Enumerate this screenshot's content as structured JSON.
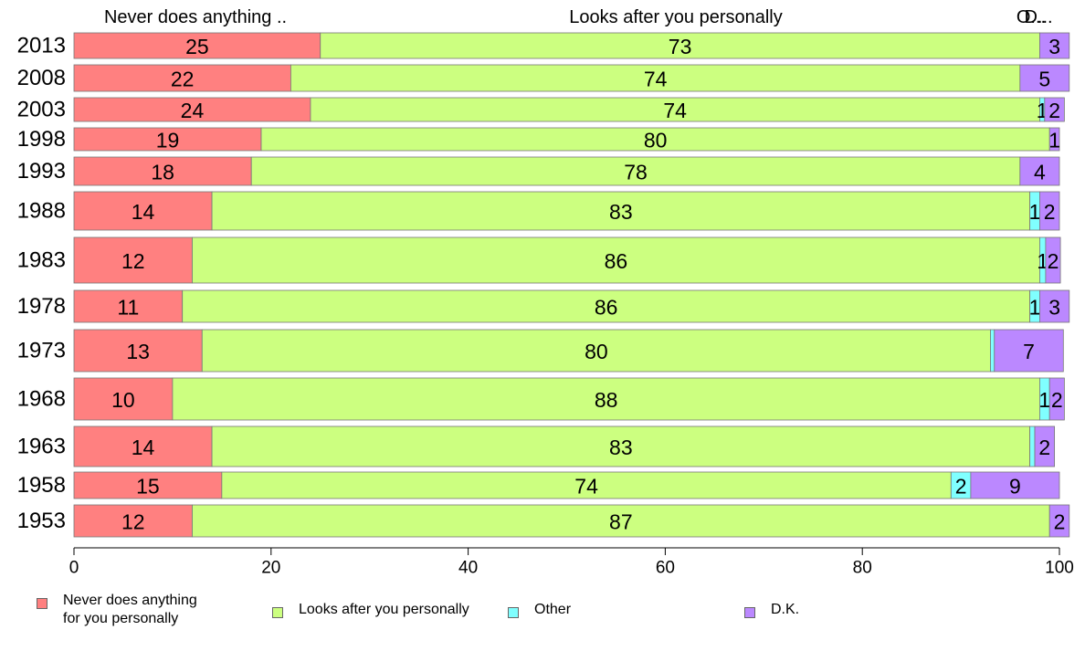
{
  "colors": {
    "never": "#ff8080",
    "looks_after": "#ccff80",
    "other": "#80ffff",
    "dk": "#bb88ff"
  },
  "top_labels": {
    "never": "Never does anything ..",
    "looks_after": "Looks after you personally",
    "other": "O...",
    "dk": "D..."
  },
  "legend": [
    {
      "key": "never",
      "label": "Never does anything\nfor you personally"
    },
    {
      "key": "looks_after",
      "label": "Looks after you personally"
    },
    {
      "key": "other",
      "label": "Other"
    },
    {
      "key": "dk",
      "label": "D.K."
    }
  ],
  "chart_data": {
    "type": "bar",
    "orientation": "horizontal",
    "stacked": true,
    "categories": [
      "2013",
      "2008",
      "2003",
      "1998",
      "1993",
      "1988",
      "1983",
      "1978",
      "1973",
      "1968",
      "1963",
      "1958",
      "1953"
    ],
    "series": [
      {
        "key": "never",
        "name": "Never does anything for you personally",
        "values": [
          25,
          22,
          24,
          19,
          18,
          14,
          12,
          11,
          13,
          10,
          14,
          15,
          12
        ],
        "labels": [
          "25",
          "22",
          "24",
          "19",
          "18",
          "14",
          "12",
          "11",
          "13",
          "10",
          "14",
          "15",
          "12"
        ]
      },
      {
        "key": "looks_after",
        "name": "Looks after you personally",
        "values": [
          73,
          74,
          74,
          80,
          78,
          83,
          86,
          86,
          80,
          88,
          83,
          74,
          87
        ],
        "labels": [
          "73",
          "74",
          "74",
          "80",
          "78",
          "83",
          "86",
          "86",
          "80",
          "88",
          "83",
          "74",
          "87"
        ]
      },
      {
        "key": "other",
        "name": "Other",
        "values": [
          0,
          0,
          0.5,
          0,
          0,
          1,
          0.6,
          1,
          0.4,
          1,
          0.5,
          2,
          0
        ],
        "labels": [
          "",
          "",
          "1",
          "",
          "",
          "1",
          "1",
          "1",
          "",
          "1",
          "",
          "2",
          ""
        ]
      },
      {
        "key": "dk",
        "name": "D.K.",
        "values": [
          3,
          5,
          2,
          1,
          4,
          2,
          1.5,
          3,
          7,
          1.5,
          2,
          9,
          2
        ],
        "labels": [
          "3",
          "5",
          "2",
          "1",
          "4",
          "2",
          "2",
          "3",
          "7",
          "2",
          "2",
          "9",
          "2"
        ]
      }
    ],
    "xlim": [
      0,
      100
    ],
    "xticks": [
      "0",
      "20",
      "40",
      "60",
      "80",
      "100"
    ],
    "legend_position": "bottom",
    "grid": false
  }
}
